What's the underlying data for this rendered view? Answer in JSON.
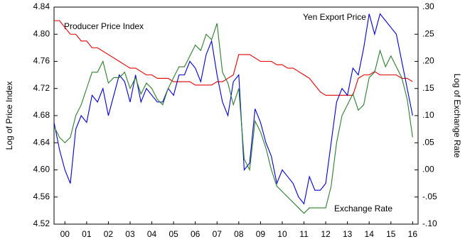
{
  "chart_data": {
    "type": "line",
    "y_label": "Log of Price Index",
    "y2_label": "Log of Exchange Rate",
    "x": [
      2000,
      2000.25,
      2000.5,
      2000.75,
      2001,
      2001.25,
      2001.5,
      2001.75,
      2002,
      2002.25,
      2002.5,
      2002.75,
      2003,
      2003.25,
      2003.5,
      2003.75,
      2004,
      2004.25,
      2004.5,
      2004.75,
      2005,
      2005.25,
      2005.5,
      2005.75,
      2006,
      2006.25,
      2006.5,
      2006.75,
      2007,
      2007.25,
      2007.5,
      2007.75,
      2008,
      2008.25,
      2008.5,
      2008.75,
      2009,
      2009.25,
      2009.5,
      2009.75,
      2010,
      2010.25,
      2010.5,
      2010.75,
      2011,
      2011.25,
      2011.5,
      2011.75,
      2012,
      2012.25,
      2012.5,
      2012.75,
      2013,
      2013.25,
      2013.5,
      2013.75,
      2014,
      2014.25,
      2014.5,
      2014.75,
      2015,
      2015.25,
      2015.5,
      2015.75,
      2016,
      2016.25,
      2016.5
    ],
    "series": [
      {
        "name": "Producer Price Index",
        "color": "#e00000",
        "axis": "y",
        "values": [
          4.82,
          4.82,
          4.81,
          4.8,
          4.8,
          4.79,
          4.79,
          4.78,
          4.78,
          4.775,
          4.77,
          4.765,
          4.76,
          4.755,
          4.75,
          4.75,
          4.745,
          4.74,
          4.74,
          4.735,
          4.735,
          4.735,
          4.73,
          4.73,
          4.73,
          4.73,
          4.725,
          4.725,
          4.725,
          4.725,
          4.73,
          4.73,
          4.735,
          4.74,
          4.77,
          4.77,
          4.77,
          4.765,
          4.76,
          4.76,
          4.76,
          4.755,
          4.755,
          4.75,
          4.75,
          4.745,
          4.74,
          4.735,
          4.725,
          4.715,
          4.71,
          4.71,
          4.71,
          4.71,
          4.71,
          4.71,
          4.735,
          4.74,
          4.74,
          4.745,
          4.74,
          4.74,
          4.74,
          4.74,
          4.735,
          4.735,
          4.73
        ]
      },
      {
        "name": "Yen Export Price",
        "color": "#0000d0",
        "axis": "y",
        "values": [
          4.67,
          4.63,
          4.6,
          4.58,
          4.66,
          4.68,
          4.67,
          4.71,
          4.7,
          4.72,
          4.68,
          4.71,
          4.74,
          4.73,
          4.7,
          4.74,
          4.7,
          4.72,
          4.71,
          4.7,
          4.7,
          4.72,
          4.71,
          4.74,
          4.74,
          4.76,
          4.75,
          4.73,
          4.77,
          4.79,
          4.74,
          4.7,
          4.68,
          4.73,
          4.74,
          4.6,
          4.61,
          4.69,
          4.67,
          4.64,
          4.62,
          4.58,
          4.6,
          4.59,
          4.58,
          4.56,
          4.55,
          4.59,
          4.57,
          4.57,
          4.58,
          4.64,
          4.7,
          4.72,
          4.71,
          4.75,
          4.74,
          4.78,
          4.83,
          4.8,
          4.83,
          4.82,
          4.81,
          4.8,
          4.76,
          4.72,
          4.68
        ]
      },
      {
        "name": "Exchange Rate",
        "color": "#2e7d2e",
        "axis": "y2",
        "values": [
          0.08,
          0.06,
          0.05,
          0.06,
          0.1,
          0.12,
          0.15,
          0.18,
          0.18,
          0.2,
          0.16,
          0.17,
          0.17,
          0.18,
          0.15,
          0.17,
          0.14,
          0.16,
          0.15,
          0.13,
          0.12,
          0.15,
          0.17,
          0.19,
          0.19,
          0.21,
          0.23,
          0.22,
          0.25,
          0.24,
          0.27,
          0.18,
          0.16,
          0.12,
          0.15,
          0.02,
          0.0,
          0.09,
          0.07,
          0.04,
          0.0,
          -0.03,
          -0.04,
          -0.05,
          -0.06,
          -0.07,
          -0.08,
          -0.07,
          -0.07,
          -0.07,
          -0.07,
          -0.03,
          0.05,
          0.1,
          0.12,
          0.14,
          0.11,
          0.12,
          0.17,
          0.18,
          0.22,
          0.19,
          0.21,
          0.19,
          0.17,
          0.13,
          0.06
        ]
      }
    ],
    "xlim": [
      2000,
      2016.75
    ],
    "xticks": [
      {
        "value": 2000.5,
        "label": "00"
      },
      {
        "value": 2001.5,
        "label": "01"
      },
      {
        "value": 2002.5,
        "label": "02"
      },
      {
        "value": 2003.5,
        "label": "03"
      },
      {
        "value": 2004.5,
        "label": "04"
      },
      {
        "value": 2005.5,
        "label": "05"
      },
      {
        "value": 2006.5,
        "label": "06"
      },
      {
        "value": 2007.5,
        "label": "07"
      },
      {
        "value": 2008.5,
        "label": "08"
      },
      {
        "value": 2009.5,
        "label": "09"
      },
      {
        "value": 2010.5,
        "label": "10"
      },
      {
        "value": 2011.5,
        "label": "11"
      },
      {
        "value": 2012.5,
        "label": "12"
      },
      {
        "value": 2013.5,
        "label": "13"
      },
      {
        "value": 2014.5,
        "label": "14"
      },
      {
        "value": 2015.5,
        "label": "15"
      },
      {
        "value": 2016.5,
        "label": "16"
      }
    ],
    "ylim": [
      4.52,
      4.84
    ],
    "yticks": [
      4.52,
      4.56,
      {
        "value": 4.6,
        "label": "4.60"
      },
      4.64,
      4.68,
      4.72,
      4.76,
      {
        "value": 4.8,
        "label": "4.80"
      },
      4.84
    ],
    "y2lim": [
      -0.1,
      0.3
    ],
    "y2ticks": [
      {
        "value": -0.1,
        "label": "-.10"
      },
      {
        "value": -0.05,
        "label": "-.05"
      },
      {
        "value": 0,
        "label": ".00"
      },
      {
        "value": 0.05,
        "label": ".05"
      },
      {
        "value": 0.1,
        "label": ".10"
      },
      {
        "value": 0.15,
        "label": ".15"
      },
      {
        "value": 0.2,
        "label": ".20"
      },
      {
        "value": 0.25,
        "label": ".25"
      },
      {
        "value": 0.3,
        "label": ".30"
      }
    ]
  }
}
